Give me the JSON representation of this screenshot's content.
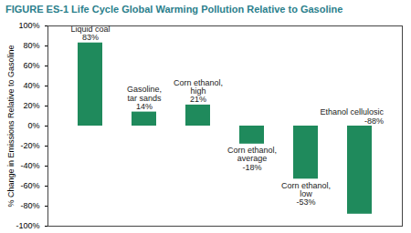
{
  "chart_data": {
    "type": "bar",
    "title": "FIGURE ES-1 Life Cycle Global Warming Pollution Relative to Gasoline",
    "y_label": "% Change in Emissions Relative to Gasoline",
    "categories": [
      "Liquid coal",
      "Gasoline, tar sands",
      "Corn ethanol, high",
      "Corn ethanol, average",
      "Corn ethanol, low",
      "Ethanol cellulosic"
    ],
    "values": [
      83,
      14,
      21,
      -18,
      -53,
      -88
    ],
    "value_labels": [
      "83%",
      "14%",
      "21%",
      "-18%",
      "-53%",
      "-88%"
    ],
    "color": "#1f8a5c",
    "ylim": [
      -100,
      100
    ],
    "yticks": [
      {
        "value": -100,
        "label": "-100%"
      },
      {
        "value": -80,
        "label": "-80%"
      },
      {
        "value": -60,
        "label": "-60%"
      },
      {
        "value": -40,
        "label": "-40%"
      },
      {
        "value": -20,
        "label": "-20%"
      },
      {
        "value": 0,
        "label": "0%"
      },
      {
        "value": 20,
        "label": "20%"
      },
      {
        "value": 40,
        "label": "40%"
      },
      {
        "value": 60,
        "label": "60%"
      },
      {
        "value": 80,
        "label": "80%"
      },
      {
        "value": 100,
        "label": "100%"
      }
    ],
    "grid": false,
    "data_labels": true,
    "tick_labels": "y"
  }
}
